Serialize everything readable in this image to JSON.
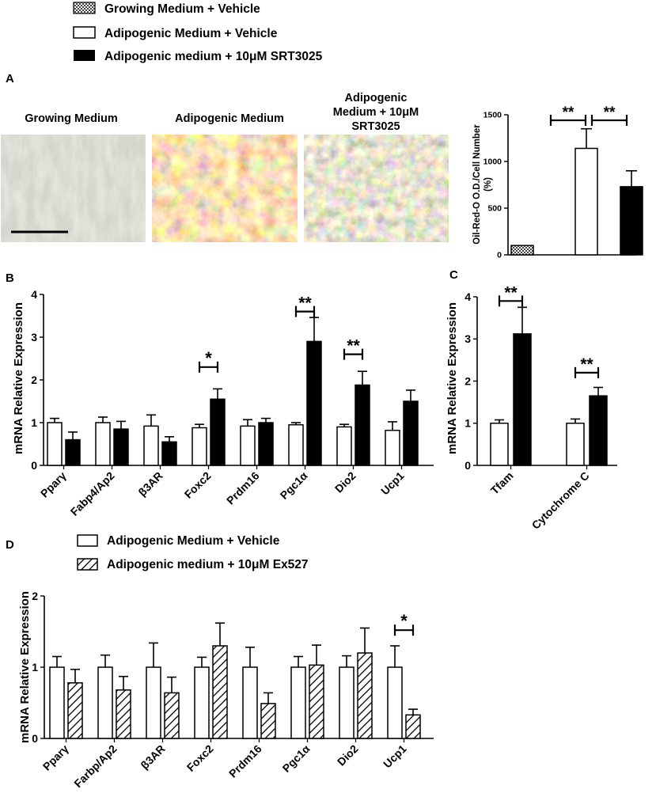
{
  "legend_top": [
    {
      "label": "Growing Medium +  Vehicle",
      "style": "checker"
    },
    {
      "label": "Adipogenic Medium + Vehicle",
      "style": "white"
    },
    {
      "label": "Adipogenic medium + 10μM SRT3025",
      "style": "black"
    }
  ],
  "panel_letters": {
    "a": "A",
    "b": "B",
    "c": "C",
    "d": "D"
  },
  "micrographs": {
    "titles": [
      "Growing Medium",
      "Adipogenic Medium",
      "Adipogenic\nMedium + 10μM\nSRT3025"
    ]
  },
  "legend_d": [
    {
      "label": "Adipogenic Medium +  Vehicle",
      "style": "white"
    },
    {
      "label": "Adipogenic medium +  10μM Ex527",
      "style": "hatch"
    }
  ],
  "colors": {
    "black": "#000000",
    "white": "#ffffff",
    "checker": "#9a9a9a"
  },
  "chart_data": [
    {
      "id": "A",
      "type": "bar",
      "ylabel": "Oil-Red-O O.D./Cell Number\n(%)",
      "ylim": [
        0,
        1500
      ],
      "yticks": [
        0,
        500,
        1000,
        1500
      ],
      "categories": [
        "Growing Medium + Vehicle",
        "Adipogenic Medium + Vehicle",
        "Adipogenic medium + 10μM SRT3025"
      ],
      "values": [
        100,
        1140,
        730
      ],
      "errors": [
        0,
        210,
        170
      ],
      "styles": [
        "checker",
        "white",
        "black"
      ],
      "significance": [
        {
          "from": 0,
          "to": 1,
          "label": "**"
        },
        {
          "from": 1,
          "to": 2,
          "label": "**"
        }
      ]
    },
    {
      "id": "B",
      "type": "bar",
      "ylabel": "mRNA Relative Expression",
      "ylim": [
        0,
        4
      ],
      "yticks": [
        0,
        1,
        2,
        3,
        4
      ],
      "categories": [
        "Pparγ",
        "Fabp4/Ap2",
        "β3AR",
        "Foxc2",
        "Prdm16",
        "Pgc1α",
        "Dio2",
        "Ucp1"
      ],
      "series": [
        {
          "name": "Adipogenic Medium + Vehicle",
          "style": "white",
          "values": [
            1.0,
            1.0,
            0.92,
            0.88,
            0.92,
            0.95,
            0.9,
            0.82
          ],
          "errors": [
            0.1,
            0.13,
            0.26,
            0.08,
            0.15,
            0.05,
            0.06,
            0.2
          ]
        },
        {
          "name": "Adipogenic medium + 10μM SRT3025",
          "style": "black",
          "values": [
            0.6,
            0.85,
            0.55,
            1.55,
            1.0,
            2.9,
            1.88,
            1.5
          ],
          "errors": [
            0.18,
            0.18,
            0.12,
            0.24,
            0.1,
            0.56,
            0.32,
            0.26
          ]
        }
      ],
      "significance": [
        {
          "category": 3,
          "label": "*",
          "y": 2.3
        },
        {
          "category": 5,
          "label": "**",
          "y": 3.6
        },
        {
          "category": 6,
          "label": "**",
          "y": 2.6
        }
      ]
    },
    {
      "id": "C",
      "type": "bar",
      "ylabel": "mRNA Relative Expression",
      "ylim": [
        0,
        4
      ],
      "yticks": [
        0,
        1,
        2,
        3,
        4
      ],
      "categories": [
        "Tfam",
        "Cytochrome C"
      ],
      "series": [
        {
          "name": "Adipogenic Medium + Vehicle",
          "style": "white",
          "values": [
            1.0,
            1.0
          ],
          "errors": [
            0.08,
            0.1
          ]
        },
        {
          "name": "Adipogenic medium + 10μM SRT3025",
          "style": "black",
          "values": [
            3.12,
            1.65
          ],
          "errors": [
            0.63,
            0.2
          ]
        }
      ],
      "significance": [
        {
          "category": 0,
          "label": "**",
          "y": 3.9
        },
        {
          "category": 1,
          "label": "**",
          "y": 2.2
        }
      ]
    },
    {
      "id": "D",
      "type": "bar",
      "ylabel": "mRNA Relative Expression",
      "ylim": [
        0,
        2
      ],
      "yticks": [
        0,
        1,
        2
      ],
      "categories": [
        "Pparγ",
        "Farbp/Ap2",
        "β3AR",
        "Foxc2",
        "Prdm16",
        "Pgc1α",
        "Dio2",
        "Ucp1"
      ],
      "series": [
        {
          "name": "Adipogenic Medium +  Vehicle",
          "style": "white",
          "values": [
            1.0,
            1.0,
            1.0,
            1.0,
            1.0,
            1.0,
            1.0,
            1.0
          ],
          "errors": [
            0.15,
            0.17,
            0.34,
            0.14,
            0.28,
            0.15,
            0.16,
            0.3
          ]
        },
        {
          "name": "Adipogenic medium +  10μM Ex527",
          "style": "hatch",
          "values": [
            0.78,
            0.68,
            0.64,
            1.3,
            0.49,
            1.03,
            1.2,
            0.33
          ],
          "errors": [
            0.19,
            0.19,
            0.22,
            0.32,
            0.15,
            0.28,
            0.35,
            0.08
          ]
        }
      ],
      "significance": [
        {
          "category": 7,
          "label": "*",
          "y": 1.52
        }
      ]
    }
  ]
}
